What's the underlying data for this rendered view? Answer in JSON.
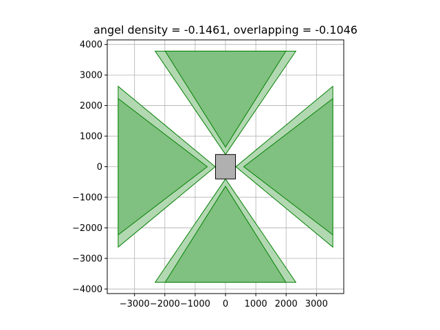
{
  "chart_data": {
    "type": "polygon-plot",
    "title": "angel density = -0.1461, overlapping = -0.1046",
    "xlabel": "",
    "ylabel": "",
    "xlim": [
      -3900,
      3900
    ],
    "ylim": [
      -4150,
      4150
    ],
    "grid": true,
    "x_ticks": [
      -3000,
      -2000,
      -1000,
      0,
      1000,
      2000,
      3000
    ],
    "x_tick_labels": [
      "−3000",
      "−2000",
      "−1000",
      "0",
      "1000",
      "2000",
      "3000"
    ],
    "y_ticks": [
      -4000,
      -3000,
      -2000,
      -1000,
      0,
      1000,
      2000,
      3000,
      4000
    ],
    "y_tick_labels": [
      "−4000",
      "−3000",
      "−2000",
      "−1000",
      "0",
      "1000",
      "2000",
      "3000",
      "4000"
    ],
    "colors": {
      "outer_fill": "#b2d8b2",
      "inner_fill": "#80c080",
      "edge": "#008000",
      "center_fill": "#b0b0b0",
      "center_edge": "#000000",
      "grid": "#b0b0b0"
    },
    "outer_polygons": [
      {
        "name": "top-outer",
        "points": [
          [
            -2320,
            3780
          ],
          [
            2320,
            3780
          ],
          [
            0,
            400
          ]
        ]
      },
      {
        "name": "bottom-outer",
        "points": [
          [
            -2320,
            -3780
          ],
          [
            2320,
            -3780
          ],
          [
            0,
            -400
          ]
        ]
      },
      {
        "name": "left-outer",
        "points": [
          [
            -3540,
            2630
          ],
          [
            -3540,
            -2630
          ],
          [
            -340,
            0
          ]
        ]
      },
      {
        "name": "right-outer",
        "points": [
          [
            3540,
            2630
          ],
          [
            3540,
            -2630
          ],
          [
            340,
            0
          ]
        ]
      }
    ],
    "inner_polygons": [
      {
        "name": "top-inner",
        "points": [
          [
            -1990,
            3780
          ],
          [
            1990,
            3780
          ],
          [
            0,
            640
          ]
        ]
      },
      {
        "name": "bottom-inner",
        "points": [
          [
            -1990,
            -3780
          ],
          [
            1990,
            -3780
          ],
          [
            0,
            -640
          ]
        ]
      },
      {
        "name": "left-inner",
        "points": [
          [
            -3540,
            2230
          ],
          [
            -3540,
            -2230
          ],
          [
            -600,
            0
          ]
        ]
      },
      {
        "name": "right-inner",
        "points": [
          [
            3540,
            2230
          ],
          [
            3540,
            -2230
          ],
          [
            600,
            0
          ]
        ]
      }
    ],
    "center_rect": {
      "x": -330,
      "y": -400,
      "width": 660,
      "height": 800
    }
  }
}
